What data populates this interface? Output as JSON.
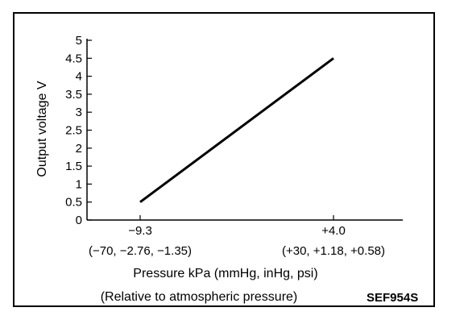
{
  "chart_data": {
    "type": "line",
    "ylabel": "Output voltage V",
    "ylim": [
      0,
      5
    ],
    "yticks": [
      "0",
      "0.5",
      "1",
      "1.5",
      "2",
      "2.5",
      "3",
      "3.5",
      "4",
      "4.5",
      "5"
    ],
    "x_ticks": [
      {
        "label": "−9.3",
        "sub": "(−70, −2.76, −1.35)",
        "value": -9.3
      },
      {
        "label": "+4.0",
        "sub": "(+30, +1.18, +0.58)",
        "value": 4.0
      }
    ],
    "series": [
      {
        "x": [
          -9.3,
          4.0
        ],
        "y": [
          0.5,
          4.5
        ]
      }
    ],
    "xlabel": "Pressure kPa (mmHg, inHg, psi)",
    "xlabel2": "(Relative to atmospheric pressure)",
    "code": "SEF954S",
    "line_color": "#000000"
  }
}
